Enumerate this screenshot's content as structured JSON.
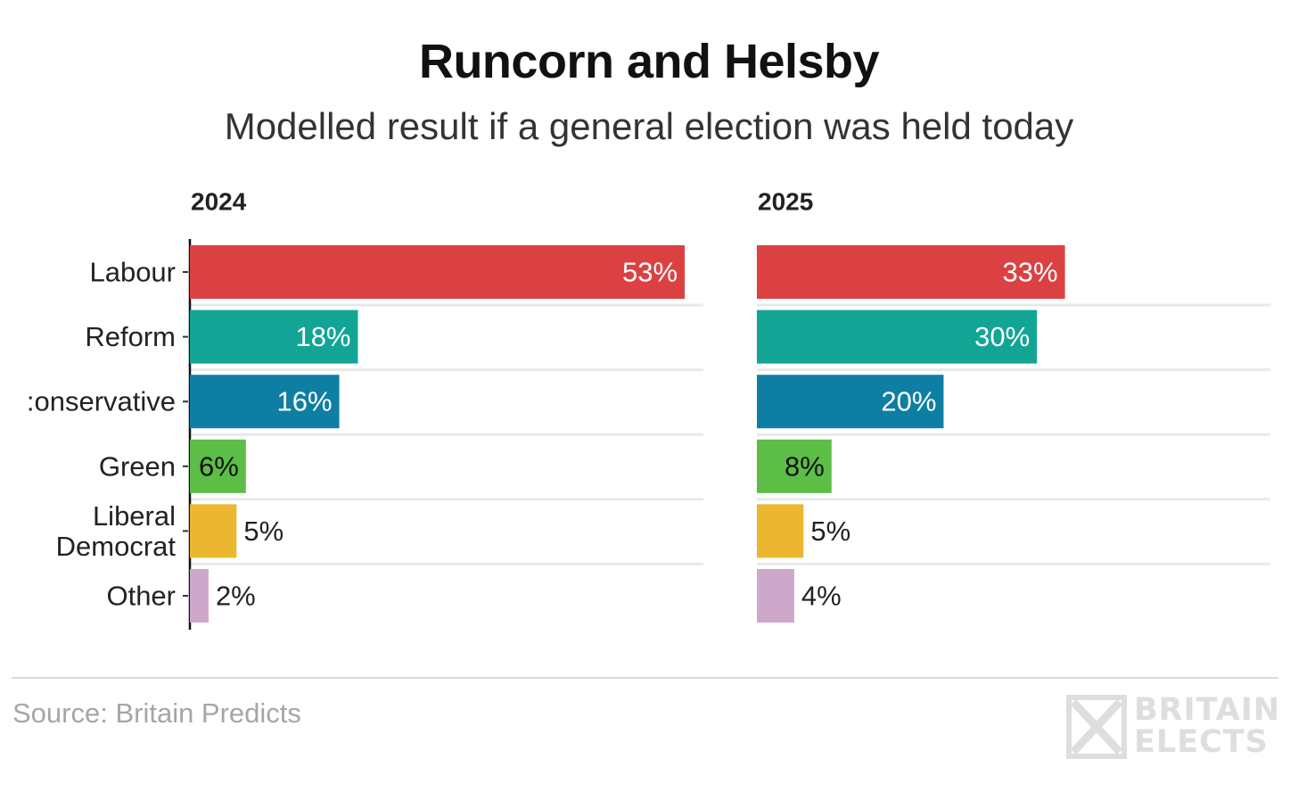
{
  "title": "Runcorn and Helsby",
  "subtitle": "Modelled result if a general election was held today",
  "source": "Source: Britain Predicts",
  "logo": {
    "line1": "BRITAIN",
    "line2": "ELECTS",
    "icon": "britain-elects-x-logo-icon"
  },
  "chart_data": {
    "type": "bar",
    "orientation": "horizontal",
    "title": "Runcorn and Helsby",
    "subtitle": "Modelled result if a general election was held today",
    "categories": [
      "Labour",
      "Reform",
      "Conservative",
      "Green",
      "Liberal Democrat",
      "Other"
    ],
    "category_labels": [
      [
        "Labour"
      ],
      [
        "Reform"
      ],
      [
        ":onservative"
      ],
      [
        "Green"
      ],
      [
        "Liberal",
        "Democrat"
      ],
      [
        "Other"
      ]
    ],
    "colors": [
      "#dc4142",
      "#12a595",
      "#0e7fa3",
      "#5cbd47",
      "#ecb730",
      "#cda8ca"
    ],
    "xlim": [
      0,
      55
    ],
    "value_suffix": "%",
    "series": [
      {
        "name": "2024",
        "values": [
          53,
          18,
          16,
          6,
          5,
          2
        ]
      },
      {
        "name": "2025",
        "values": [
          33,
          30,
          20,
          8,
          5,
          4
        ]
      }
    ]
  }
}
